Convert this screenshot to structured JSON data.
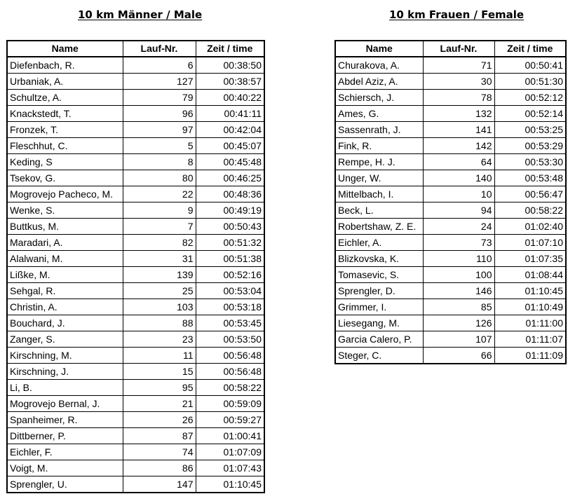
{
  "men": {
    "title": "10 km Männer / Male",
    "headers": {
      "name": "Name",
      "number": "Lauf-Nr.",
      "time": "Zeit / time"
    },
    "rows": [
      {
        "name": "Diefenbach, R.",
        "number": "6",
        "time": "00:38:50"
      },
      {
        "name": "Urbaniak, A.",
        "number": "127",
        "time": "00:38:57"
      },
      {
        "name": "Schultze, A.",
        "number": "79",
        "time": "00:40:22"
      },
      {
        "name": "Knackstedt, T.",
        "number": "96",
        "time": "00:41:11"
      },
      {
        "name": "Fronzek, T.",
        "number": "97",
        "time": "00:42:04"
      },
      {
        "name": "Fleschhut, C.",
        "number": "5",
        "time": "00:45:07"
      },
      {
        "name": "Keding, S",
        "number": "8",
        "time": "00:45:48"
      },
      {
        "name": "Tsekov, G.",
        "number": "80",
        "time": "00:46:25"
      },
      {
        "name": "Mogrovejo Pacheco, M.",
        "number": "22",
        "time": "00:48:36"
      },
      {
        "name": "Wenke, S.",
        "number": "9",
        "time": "00:49:19"
      },
      {
        "name": "Buttkus, M.",
        "number": "7",
        "time": "00:50:43"
      },
      {
        "name": "Maradari, A.",
        "number": "82",
        "time": "00:51:32"
      },
      {
        "name": "Alalwani, M.",
        "number": "31",
        "time": "00:51:38"
      },
      {
        "name": "Lißke, M.",
        "number": "139",
        "time": "00:52:16"
      },
      {
        "name": "Sehgal, R.",
        "number": "25",
        "time": "00:53:04"
      },
      {
        "name": "Christin, A.",
        "number": "103",
        "time": "00:53:18"
      },
      {
        "name": "Bouchard, J.",
        "number": "88",
        "time": "00:53:45"
      },
      {
        "name": "Zanger, S.",
        "number": "23",
        "time": "00:53:50"
      },
      {
        "name": "Kirschning, M.",
        "number": "11",
        "time": "00:56:48"
      },
      {
        "name": "Kirschning, J.",
        "number": "15",
        "time": "00:56:48"
      },
      {
        "name": "Li, B.",
        "number": "95",
        "time": "00:58:22"
      },
      {
        "name": "Mogrovejo Bernal, J.",
        "number": "21",
        "time": "00:59:09"
      },
      {
        "name": "Spanheimer, R.",
        "number": "26",
        "time": "00:59:27"
      },
      {
        "name": "Dittberner, P.",
        "number": "87",
        "time": "01:00:41"
      },
      {
        "name": "Eichler, F.",
        "number": "74",
        "time": "01:07:09"
      },
      {
        "name": "Voigt, M.",
        "number": "86",
        "time": "01:07:43"
      },
      {
        "name": "Sprengler, U.",
        "number": "147",
        "time": "01:10:45"
      }
    ]
  },
  "women": {
    "title": "10 km Frauen / Female",
    "headers": {
      "name": "Name",
      "number": "Lauf-Nr.",
      "time": "Zeit / time"
    },
    "rows": [
      {
        "name": "Churakova, A.",
        "number": "71",
        "time": "00:50:41"
      },
      {
        "name": "Abdel Aziz, A.",
        "number": "30",
        "time": "00:51:30"
      },
      {
        "name": "Schiersch, J.",
        "number": "78",
        "time": "00:52:12"
      },
      {
        "name": "Ames, G.",
        "number": "132",
        "time": "00:52:14"
      },
      {
        "name": "Sassenrath, J.",
        "number": "141",
        "time": "00:53:25"
      },
      {
        "name": "Fink, R.",
        "number": "142",
        "time": "00:53:29"
      },
      {
        "name": "Rempe, H. J.",
        "number": "64",
        "time": "00:53:30"
      },
      {
        "name": "Unger, W.",
        "number": "140",
        "time": "00:53:48"
      },
      {
        "name": "Mittelbach, I.",
        "number": "10",
        "time": "00:56:47"
      },
      {
        "name": "Beck, L.",
        "number": "94",
        "time": "00:58:22"
      },
      {
        "name": "Robertshaw, Z. E.",
        "number": "24",
        "time": "01:02:40"
      },
      {
        "name": "Eichler, A.",
        "number": "73",
        "time": "01:07:10"
      },
      {
        "name": "Blizkovska, K.",
        "number": "110",
        "time": "01:07:35"
      },
      {
        "name": "Tomasevic, S.",
        "number": "100",
        "time": "01:08:44"
      },
      {
        "name": "Sprengler, D.",
        "number": "146",
        "time": "01:10:45"
      },
      {
        "name": "Grimmer, I.",
        "number": "85",
        "time": "01:10:49"
      },
      {
        "name": "Liesegang, M.",
        "number": "126",
        "time": "01:11:00"
      },
      {
        "name": "Garcia Calero, P.",
        "number": "107",
        "time": "01:11:07"
      },
      {
        "name": "Steger, C.",
        "number": "66",
        "time": "01:11:09"
      }
    ]
  }
}
